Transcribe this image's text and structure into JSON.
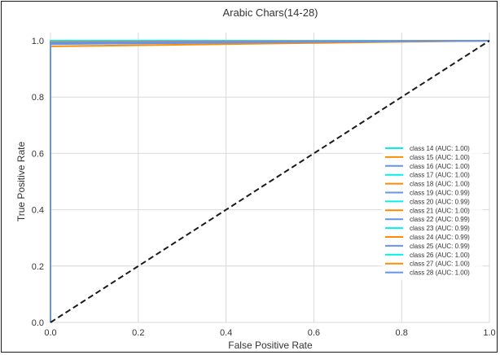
{
  "chart_data": {
    "type": "line",
    "title": "Arabic Chars(14-28)",
    "xlabel": "False Positive Rate",
    "ylabel": "True Positive Rate",
    "xlim": [
      0.0,
      1.0
    ],
    "ylim": [
      0.0,
      1.0
    ],
    "xticks": [
      "0.0",
      "0.2",
      "0.4",
      "0.6",
      "0.8",
      "1.0"
    ],
    "yticks": [
      "0.0",
      "0.2",
      "0.4",
      "0.6",
      "0.8",
      "1.0"
    ],
    "grid": true,
    "legend_position": "lower-right",
    "reference_line": {
      "x": [
        0,
        1
      ],
      "y": [
        0,
        1
      ],
      "style": "dashed",
      "color": "#1a1a1a"
    },
    "series": [
      {
        "name": "class 14 (AUC: 1.00)",
        "color": "#00f0f0",
        "x": [
          0,
          0,
          1
        ],
        "y": [
          0,
          1.0,
          1.0
        ]
      },
      {
        "name": "class 15 (AUC: 1.00)",
        "color": "#ff8c00",
        "x": [
          0,
          0,
          1
        ],
        "y": [
          0,
          0.997,
          1.0
        ]
      },
      {
        "name": "class 16 (AUC: 1.00)",
        "color": "#6495ed",
        "x": [
          0,
          0,
          1
        ],
        "y": [
          0,
          0.995,
          1.0
        ]
      },
      {
        "name": "class 17 (AUC: 1.00)",
        "color": "#00f0f0",
        "x": [
          0,
          0,
          1
        ],
        "y": [
          0,
          0.998,
          1.0
        ]
      },
      {
        "name": "class 18 (AUC: 1.00)",
        "color": "#ff8c00",
        "x": [
          0,
          0,
          1
        ],
        "y": [
          0,
          0.996,
          1.0
        ]
      },
      {
        "name": "class 19 (AUC: 0.99)",
        "color": "#6495ed",
        "x": [
          0,
          0,
          1
        ],
        "y": [
          0,
          0.99,
          1.0
        ]
      },
      {
        "name": "class 20 (AUC: 0.99)",
        "color": "#00f0f0",
        "x": [
          0,
          0,
          1
        ],
        "y": [
          0,
          0.991,
          1.0
        ]
      },
      {
        "name": "class 21 (AUC: 1.00)",
        "color": "#ff8c00",
        "x": [
          0,
          0,
          1
        ],
        "y": [
          0,
          0.995,
          1.0
        ]
      },
      {
        "name": "class 22 (AUC: 0.99)",
        "color": "#6495ed",
        "x": [
          0,
          0,
          1
        ],
        "y": [
          0,
          0.988,
          1.0
        ]
      },
      {
        "name": "class 23 (AUC: 0.99)",
        "color": "#00f0f0",
        "x": [
          0,
          0,
          1
        ],
        "y": [
          0,
          0.99,
          1.0
        ]
      },
      {
        "name": "class 24 (AUC: 0.99)",
        "color": "#ff8c00",
        "x": [
          0,
          0,
          1
        ],
        "y": [
          0,
          0.98,
          1.0
        ]
      },
      {
        "name": "class 25 (AUC: 0.99)",
        "color": "#6495ed",
        "x": [
          0,
          0,
          1
        ],
        "y": [
          0,
          0.989,
          1.0
        ]
      },
      {
        "name": "class 26 (AUC: 1.00)",
        "color": "#00f0f0",
        "x": [
          0,
          0,
          1
        ],
        "y": [
          0,
          0.997,
          1.0
        ]
      },
      {
        "name": "class 27 (AUC: 1.00)",
        "color": "#ff8c00",
        "x": [
          0,
          0,
          1
        ],
        "y": [
          0,
          0.996,
          1.0
        ]
      },
      {
        "name": "class 28 (AUC: 1.00)",
        "color": "#6495ed",
        "x": [
          0,
          0,
          1
        ],
        "y": [
          0,
          0.994,
          1.0
        ]
      }
    ]
  }
}
